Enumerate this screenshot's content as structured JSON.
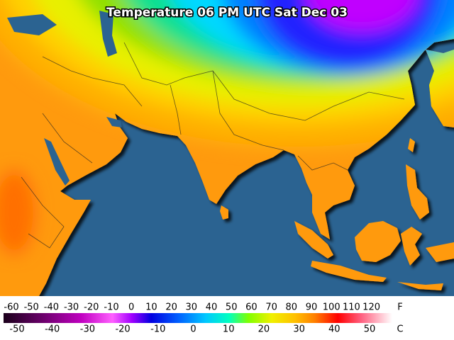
{
  "title": "Temperature 06 PM UTC Sat Dec 03",
  "legend": {
    "fahrenheit": {
      "unit": "F",
      "labels": [
        -60,
        -50,
        -40,
        -30,
        -20,
        -10,
        0,
        10,
        20,
        30,
        40,
        50,
        60,
        70,
        80,
        90,
        100,
        110,
        120
      ]
    },
    "celsius": {
      "unit": "C",
      "labels": [
        -50,
        -40,
        -30,
        -20,
        -10,
        0,
        10,
        20,
        30,
        40,
        50
      ]
    }
  }
}
